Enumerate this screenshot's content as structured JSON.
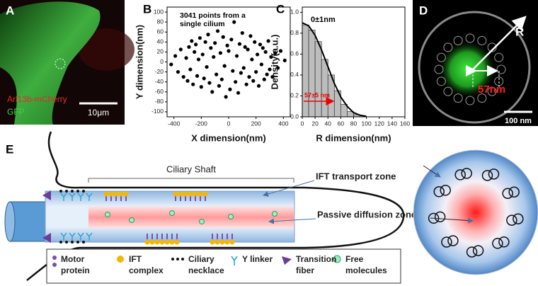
{
  "figure": {
    "panel_labels": [
      "A",
      "B",
      "C",
      "D",
      "E"
    ],
    "panel_a": {
      "channel_red": "Arl13b-mCherry",
      "channel_green": "GFP",
      "scale_bar": "10μm"
    },
    "panel_d": {
      "radius_label": "R",
      "distance_label": "57nm",
      "scale_bar": "100 nm"
    },
    "panel_e": {
      "shaft_label": "Ciliary Shaft",
      "ift_zone": "IFT transport zone",
      "diffusion_zone": "Passive diffusion zone",
      "legend": [
        [
          "Motor",
          "protein"
        ],
        [
          "IFT",
          "complex"
        ],
        [
          "Ciliary",
          "necklace"
        ],
        [
          "Y linker"
        ],
        [
          "Transition",
          "fiber"
        ],
        [
          "Free",
          "molecules"
        ]
      ]
    }
  },
  "chart_data": [
    {
      "type": "scatter",
      "annotation": [
        "3041 points from a",
        "single cilium"
      ],
      "xlabel": "X dimension(nm)",
      "ylabel": "Y dimension(nm)",
      "color": "#000000",
      "x": [
        -420,
        -390,
        -370,
        -350,
        -330,
        -310,
        -300,
        -290,
        -280,
        -270,
        -260,
        -250,
        -240,
        -230,
        -220,
        -210,
        -200,
        -190,
        -180,
        -170,
        -160,
        -150,
        -140,
        -130,
        -120,
        -110,
        -100,
        -90,
        -80,
        -70,
        -60,
        -50,
        -40,
        -30,
        -20,
        -10,
        0,
        10,
        20,
        30,
        40,
        50,
        60,
        70,
        80,
        90,
        100,
        110,
        120,
        130,
        140,
        150,
        160,
        170,
        180,
        190,
        200,
        210,
        220,
        230,
        240,
        250,
        260,
        270,
        280,
        290,
        300,
        310,
        320,
        340,
        360,
        380,
        410
      ],
      "values": [
        -5,
        12,
        -20,
        25,
        -30,
        8,
        -38,
        30,
        -15,
        42,
        -45,
        20,
        35,
        -28,
        5,
        48,
        -50,
        15,
        -33,
        40,
        -10,
        55,
        -42,
        28,
        -60,
        10,
        38,
        -25,
        62,
        -48,
        18,
        -35,
        50,
        -8,
        -70,
        33,
        22,
        -55,
        45,
        -18,
        80,
        -40,
        12,
        -62,
        36,
        -22,
        58,
        -12,
        30,
        -45,
        25,
        -30,
        52,
        5,
        -38,
        40,
        -20,
        15,
        -48,
        35,
        -5,
        28,
        -35,
        20,
        -25,
        42,
        -15,
        10,
        -30,
        18,
        -12,
        22,
        3
      ],
      "xlim": [
        -450,
        450
      ],
      "xticks": [
        -400,
        -200,
        0,
        200,
        400
      ],
      "ylim": [
        -110,
        110
      ],
      "yticks": [
        100,
        80,
        60,
        40,
        20,
        0,
        -20,
        -40,
        -60,
        -80,
        -100
      ]
    },
    {
      "type": "histogram",
      "xlabel": "R dimension(nm)",
      "ylabel": "Density(a.u.)",
      "annotations": [
        "0±1nm",
        "57±5 nm"
      ],
      "color": "#bdbdbd",
      "bins": [
        0,
        10,
        20,
        30,
        40,
        50,
        60,
        70,
        80,
        90
      ],
      "values": [
        0.88,
        0.83,
        0.72,
        0.55,
        0.4,
        0.25,
        0.12,
        0.05,
        0.02
      ],
      "fit": {
        "x": [
          0,
          10,
          20,
          30,
          40,
          50,
          60,
          70,
          80,
          90,
          100
        ],
        "values": [
          0.9,
          0.87,
          0.78,
          0.64,
          0.48,
          0.32,
          0.19,
          0.1,
          0.04,
          0.015,
          0.005
        ]
      },
      "xlim": [
        0,
        160
      ],
      "xticks": [
        0,
        20,
        40,
        60,
        80,
        100,
        120,
        140,
        160
      ],
      "ylim": [
        0,
        1.05
      ],
      "yticks": [
        {
          "value": 0,
          "label": "0.0"
        },
        0.2,
        0.4,
        0.6,
        0.8,
        {
          "value": 1,
          "label": "1.0"
        }
      ]
    }
  ]
}
